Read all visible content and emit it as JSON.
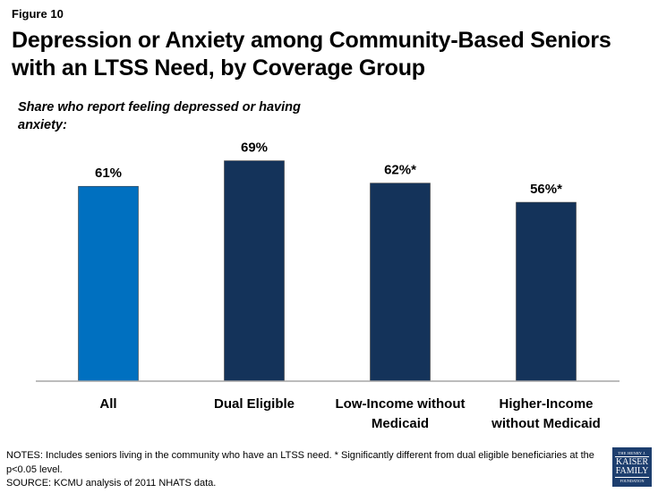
{
  "figure_label": "Figure 10",
  "title": "Depression or Anxiety among Community-Based Seniors with an LTSS Need, by Coverage Group",
  "subtitle": "Share who report feeling depressed or having anxiety:",
  "chart_data": {
    "type": "bar",
    "title": "Depression or Anxiety among Community-Based Seniors with an LTSS Need, by Coverage Group",
    "subtitle": "Share who report feeling depressed or having anxiety:",
    "xlabel": "",
    "ylabel": "",
    "categories": [
      "All",
      "Dual Eligible",
      "Low-Income without Medicaid",
      "Higher-Income without Medicaid"
    ],
    "category_lines": [
      [
        "All"
      ],
      [
        "Dual Eligible"
      ],
      [
        "Low-Income without",
        "Medicaid"
      ],
      [
        "Higher-Income",
        "without Medicaid"
      ]
    ],
    "values": [
      61,
      69,
      62,
      56
    ],
    "data_labels": [
      "61%",
      "69%",
      "62%*",
      "56%*"
    ],
    "bar_colors": [
      "#0070c0",
      "#14335a",
      "#14335a",
      "#14335a"
    ],
    "ylim": [
      0,
      100
    ],
    "grid": false,
    "legend": "none"
  },
  "notes": {
    "line1": "NOTES: Includes seniors living in the community who have an LTSS need. * Significantly different from dual eligible beneficiaries at the p<0.05 level.",
    "line2": "SOURCE: KCMU analysis of 2011 NHATS data."
  },
  "logo": {
    "line1": "THE HENRY J.",
    "line2": "KAISER",
    "line3": "FAMILY",
    "line4": "FOUNDATION",
    "color": "#1d3e6e"
  }
}
